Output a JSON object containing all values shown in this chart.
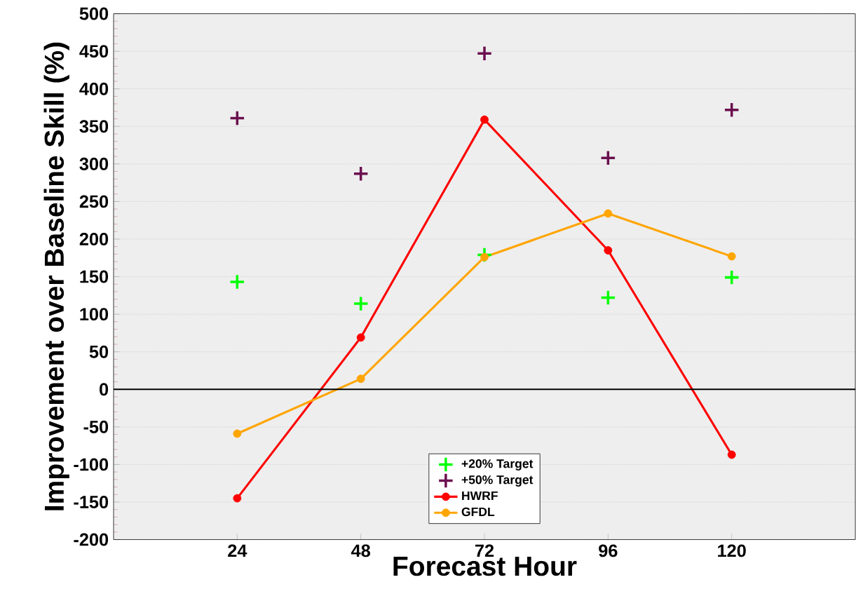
{
  "chart_data": {
    "type": "line",
    "xlabel": "Forecast Hour",
    "ylabel": "Improvement over Baseline Skill (%)",
    "x": [
      24,
      48,
      72,
      96,
      120
    ],
    "series": [
      {
        "name": "+20% Target",
        "type": "scatter",
        "marker": "cross",
        "color": "#00ff00",
        "values": [
          143,
          114,
          179,
          122,
          149
        ]
      },
      {
        "name": "+50% Target",
        "type": "scatter",
        "marker": "cross",
        "color": "#6b0f4f",
        "values": [
          361,
          287,
          447,
          308,
          372
        ]
      },
      {
        "name": "HWRF",
        "marker": "circle",
        "color": "#ff0000",
        "values": [
          -145,
          69,
          359,
          185,
          -87
        ]
      },
      {
        "name": "GFDL",
        "marker": "circle",
        "color": "#ffa500",
        "values": [
          -59,
          14,
          176,
          234,
          177
        ]
      }
    ],
    "xlim": [
      0,
      144
    ],
    "xticks": [
      24,
      48,
      72,
      96,
      120
    ],
    "ylim": [
      -200,
      500
    ],
    "yticks": [
      -200,
      -150,
      -100,
      -50,
      0,
      50,
      100,
      150,
      200,
      250,
      300,
      350,
      400,
      450,
      500
    ],
    "ref_lines": [
      {
        "axis": "y",
        "value": 0,
        "color": "#000000"
      }
    ],
    "grid": "y",
    "legend": "bottom"
  }
}
